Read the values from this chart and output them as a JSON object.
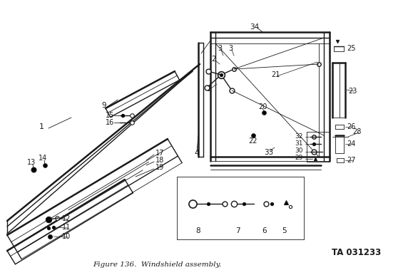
{
  "caption": "Figure 136.  Windshield assembly.",
  "ta_label": "TA 031233",
  "bg_color": "#ffffff",
  "line_color": "#1a1a1a",
  "label_color": "#1a1a1a",
  "caption_fontsize": 7.5,
  "ta_fontsize": 8.5,
  "label_fontsize": 7.0,
  "fig_width": 5.72,
  "fig_height": 3.86,
  "dpi": 100
}
